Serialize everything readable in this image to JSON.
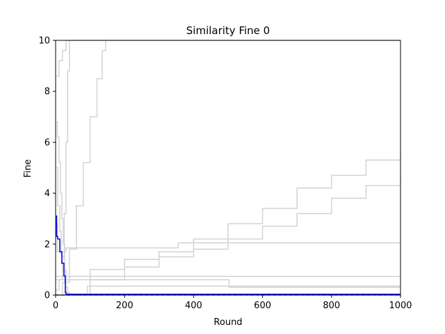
{
  "chart_data": {
    "type": "line",
    "title": "Similarity Fine 0",
    "xlabel": "Round",
    "ylabel": "Fine",
    "xlim": [
      0,
      1000
    ],
    "ylim": [
      0,
      10
    ],
    "xticks": [
      0,
      200,
      400,
      600,
      800,
      1000
    ],
    "yticks": [
      0,
      2,
      4,
      6,
      8,
      10
    ],
    "grid": false,
    "colors": {
      "background_series": "#d3d3d3",
      "highlight": "#0000ff",
      "secondary": "#2ca02c",
      "axes": "#000000"
    },
    "background_series": [
      {
        "x": [
          0,
          10,
          20,
          30,
          40
        ],
        "y": [
          8.6,
          9.2,
          9.6,
          10,
          10
        ]
      },
      {
        "x": [
          0,
          5,
          10,
          14,
          18,
          22,
          26,
          30,
          35
        ],
        "y": [
          6.8,
          6.2,
          5.2,
          4.0,
          3.0,
          2.0,
          1.0,
          0.3,
          0
        ]
      },
      {
        "x": [
          0,
          6,
          12,
          16,
          20,
          26,
          30,
          40,
          1000
        ],
        "y": [
          5.0,
          3.5,
          2.5,
          1.6,
          1.0,
          0.5,
          0.1,
          0.0,
          0.0
        ]
      },
      {
        "x": [
          0,
          10,
          20,
          25,
          30,
          35,
          40,
          50,
          1000
        ],
        "y": [
          0.2,
          0.6,
          1.5,
          3.2,
          6.0,
          8.8,
          10,
          10,
          10
        ]
      },
      {
        "x": [
          0,
          20,
          40,
          60,
          80,
          100,
          120,
          135,
          145,
          1000
        ],
        "y": [
          0.0,
          0.5,
          1.8,
          3.5,
          5.2,
          7.0,
          8.5,
          9.6,
          10,
          10
        ]
      },
      {
        "x": [
          0,
          100,
          200,
          300,
          400,
          500,
          600,
          700,
          800,
          900,
          1000
        ],
        "y": [
          0.0,
          1.0,
          1.4,
          1.7,
          2.2,
          2.8,
          3.4,
          4.2,
          4.7,
          5.3,
          5.8
        ]
      },
      {
        "x": [
          0,
          100,
          200,
          300,
          400,
          500,
          600,
          700,
          800,
          900,
          1000
        ],
        "y": [
          0.0,
          0.6,
          1.1,
          1.5,
          1.8,
          2.2,
          2.7,
          3.2,
          3.8,
          4.3,
          4.7
        ]
      },
      {
        "x": [
          0,
          5,
          30,
          40,
          350,
          355,
          1000
        ],
        "y": [
          2.8,
          1.7,
          1.85,
          1.85,
          1.85,
          2.05,
          2.05
        ]
      },
      {
        "x": [
          0,
          1000
        ],
        "y": [
          0.73,
          0.73
        ]
      },
      {
        "x": [
          0,
          500,
          503,
          1000
        ],
        "y": [
          0.6,
          0.6,
          0.3,
          0.3
        ]
      },
      {
        "x": [
          0,
          90,
          92,
          1000
        ],
        "y": [
          0.0,
          0.0,
          0.35,
          0.35
        ]
      }
    ],
    "highlight_series": {
      "x": [
        0,
        3,
        6,
        8,
        12,
        14,
        18,
        20,
        22,
        24,
        26,
        28,
        30,
        1000
      ],
      "y": [
        3.1,
        2.3,
        2.2,
        2.2,
        1.7,
        1.7,
        1.25,
        1.25,
        1.25,
        0.75,
        0.75,
        0.1,
        0.03,
        0.03
      ]
    },
    "secondary_series": {
      "x": [
        0,
        1000
      ],
      "y": [
        0.0,
        0.0
      ]
    }
  }
}
